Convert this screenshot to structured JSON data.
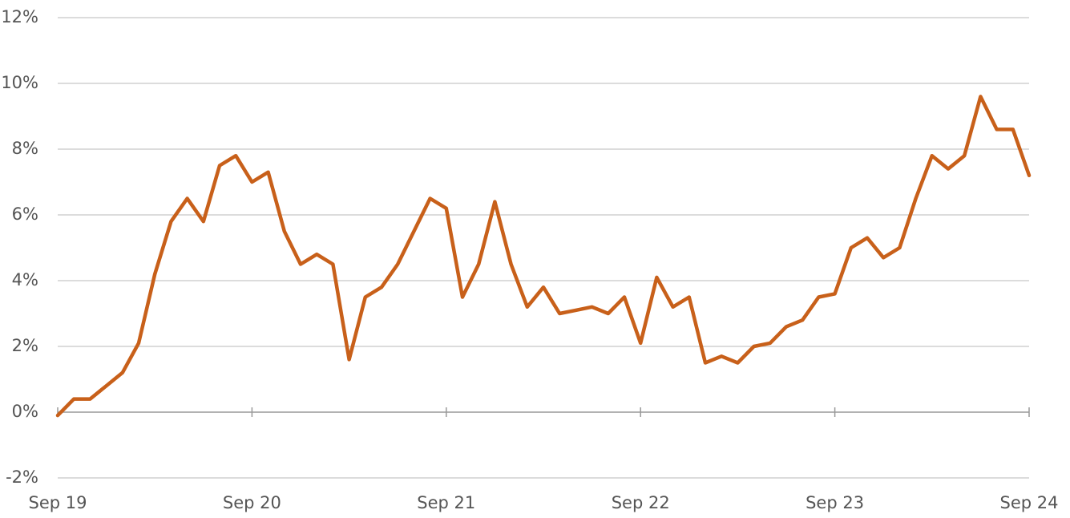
{
  "chart_data": {
    "type": "line",
    "categories": [
      "Sep 19",
      null,
      null,
      null,
      null,
      null,
      null,
      null,
      null,
      null,
      null,
      null,
      "Sep 20",
      null,
      null,
      null,
      null,
      null,
      null,
      null,
      null,
      null,
      null,
      null,
      "Sep 21",
      null,
      null,
      null,
      null,
      null,
      null,
      null,
      null,
      null,
      null,
      null,
      "Sep 22",
      null,
      null,
      null,
      null,
      null,
      null,
      null,
      null,
      null,
      null,
      null,
      "Sep 23",
      null,
      null,
      null,
      null,
      null,
      null,
      null,
      null,
      null,
      null,
      null,
      "Sep 24"
    ],
    "values": [
      -0.1,
      0.4,
      0.4,
      0.8,
      1.2,
      2.1,
      4.2,
      5.8,
      6.5,
      5.8,
      7.5,
      7.8,
      7.0,
      7.3,
      5.5,
      4.5,
      4.8,
      4.5,
      1.6,
      3.5,
      3.8,
      4.5,
      5.5,
      6.5,
      6.2,
      3.5,
      4.5,
      6.4,
      4.5,
      3.2,
      3.8,
      3.0,
      3.1,
      3.2,
      3.0,
      3.5,
      2.1,
      4.1,
      3.2,
      3.5,
      1.5,
      1.7,
      1.5,
      2.0,
      2.1,
      2.6,
      2.8,
      3.5,
      3.6,
      5.0,
      5.3,
      4.7,
      5.0,
      6.5,
      7.8,
      7.4,
      7.8,
      9.6,
      8.6,
      8.6,
      7.2
    ],
    "color": "#c8601a",
    "ylim": [
      -2,
      12
    ],
    "yticks": [
      {
        "value": -2,
        "label": "-2%"
      },
      {
        "value": 0,
        "label": "0%"
      },
      {
        "value": 2,
        "label": "2%"
      },
      {
        "value": 4,
        "label": "4%"
      },
      {
        "value": 6,
        "label": "6%"
      },
      {
        "value": 8,
        "label": "8%"
      },
      {
        "value": 10,
        "label": "10%"
      },
      {
        "value": 12,
        "label": "12%"
      }
    ],
    "grid": true
  }
}
